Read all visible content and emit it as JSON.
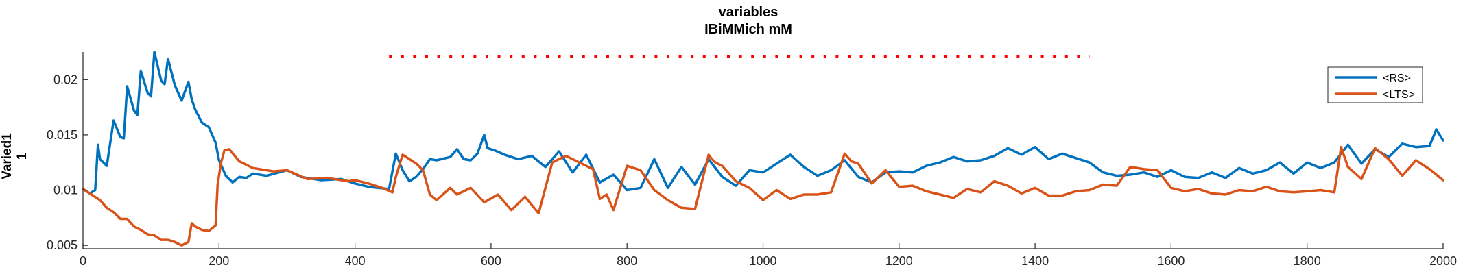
{
  "chart_data": {
    "type": "line",
    "title": "variables",
    "subtitle": "IBiMMich mM",
    "ylabel_lines": [
      "Varied1",
      "1"
    ],
    "xlim": [
      0,
      2000
    ],
    "ylim": [
      0.0047,
      0.0225
    ],
    "xticks": [
      0,
      200,
      400,
      600,
      800,
      1000,
      1200,
      1400,
      1600,
      1800,
      2000
    ],
    "xtick_labels": [
      "0",
      "200",
      "400",
      "600",
      "800",
      "1000",
      "1200",
      "1400",
      "1600",
      "1800",
      "2000"
    ],
    "yticks": [
      0.005,
      0.01,
      0.015,
      0.02
    ],
    "ytick_labels": [
      "0.005",
      "0.01",
      "0.015",
      "0.02"
    ],
    "grid": false,
    "legend_position": "top-right",
    "stimulus_marker": {
      "x_start": 450,
      "x_end": 1480,
      "y": 0.0221,
      "color": "#ff0000",
      "style": "dotted"
    },
    "series": [
      {
        "name": "<RS>",
        "color": "#0072bd",
        "x": [
          0,
          10,
          18,
          22,
          25,
          35,
          45,
          55,
          60,
          65,
          75,
          80,
          85,
          95,
          100,
          105,
          115,
          120,
          125,
          135,
          140,
          145,
          155,
          160,
          165,
          175,
          185,
          195,
          200,
          210,
          220,
          230,
          240,
          250,
          270,
          300,
          320,
          350,
          380,
          400,
          420,
          450,
          460,
          470,
          480,
          490,
          500,
          510,
          520,
          540,
          550,
          560,
          570,
          580,
          590,
          595,
          605,
          620,
          640,
          660,
          680,
          700,
          720,
          740,
          760,
          780,
          800,
          820,
          840,
          860,
          880,
          900,
          920,
          940,
          960,
          980,
          1000,
          1020,
          1040,
          1060,
          1080,
          1100,
          1120,
          1140,
          1160,
          1180,
          1200,
          1220,
          1240,
          1260,
          1280,
          1300,
          1320,
          1340,
          1360,
          1380,
          1400,
          1420,
          1440,
          1460,
          1480,
          1500,
          1520,
          1540,
          1560,
          1580,
          1600,
          1620,
          1640,
          1660,
          1680,
          1700,
          1720,
          1740,
          1760,
          1780,
          1800,
          1820,
          1840,
          1860,
          1880,
          1900,
          1920,
          1940,
          1960,
          1980,
          1990,
          2000
        ],
        "y": [
          0.0101,
          0.0097,
          0.01,
          0.0141,
          0.0128,
          0.0122,
          0.0163,
          0.0148,
          0.0147,
          0.0194,
          0.0172,
          0.0168,
          0.0208,
          0.0188,
          0.0185,
          0.0225,
          0.0199,
          0.0196,
          0.0219,
          0.0195,
          0.0188,
          0.0181,
          0.0198,
          0.0182,
          0.0173,
          0.0161,
          0.0157,
          0.0143,
          0.0127,
          0.0113,
          0.0107,
          0.0112,
          0.0111,
          0.0115,
          0.0113,
          0.0118,
          0.0112,
          0.0109,
          0.011,
          0.0106,
          0.0103,
          0.0101,
          0.0133,
          0.0118,
          0.0108,
          0.0112,
          0.0119,
          0.0128,
          0.0127,
          0.013,
          0.0137,
          0.0128,
          0.0127,
          0.0133,
          0.015,
          0.0138,
          0.0136,
          0.0132,
          0.0128,
          0.0131,
          0.0121,
          0.0135,
          0.0116,
          0.0132,
          0.0107,
          0.0114,
          0.01,
          0.0102,
          0.0128,
          0.0102,
          0.0121,
          0.0105,
          0.0128,
          0.0112,
          0.0104,
          0.0118,
          0.0116,
          0.0124,
          0.0132,
          0.0121,
          0.0113,
          0.0118,
          0.0127,
          0.0112,
          0.0107,
          0.0116,
          0.0117,
          0.0116,
          0.0122,
          0.0125,
          0.013,
          0.0126,
          0.0127,
          0.0131,
          0.0138,
          0.0132,
          0.0139,
          0.0128,
          0.0133,
          0.0129,
          0.0125,
          0.0116,
          0.0113,
          0.0114,
          0.0116,
          0.0112,
          0.0118,
          0.0112,
          0.0111,
          0.0116,
          0.0111,
          0.012,
          0.0115,
          0.0118,
          0.0125,
          0.0115,
          0.0125,
          0.012,
          0.0125,
          0.0141,
          0.0124,
          0.0137,
          0.013,
          0.0142,
          0.0139,
          0.014,
          0.0155,
          0.0145
        ]
      },
      {
        "name": "<LTS>",
        "color": "#d95319",
        "x": [
          0,
          15,
          25,
          35,
          45,
          55,
          65,
          75,
          85,
          95,
          105,
          115,
          125,
          135,
          145,
          155,
          160,
          165,
          175,
          185,
          195,
          198,
          203,
          208,
          215,
          230,
          250,
          280,
          300,
          330,
          360,
          390,
          400,
          420,
          440,
          455,
          460,
          470,
          490,
          500,
          510,
          520,
          540,
          550,
          570,
          590,
          610,
          630,
          650,
          670,
          690,
          710,
          730,
          750,
          760,
          770,
          780,
          800,
          820,
          840,
          860,
          880,
          900,
          920,
          925,
          930,
          940,
          960,
          980,
          1000,
          1020,
          1040,
          1060,
          1080,
          1100,
          1120,
          1130,
          1140,
          1160,
          1180,
          1200,
          1220,
          1240,
          1260,
          1280,
          1300,
          1320,
          1340,
          1360,
          1380,
          1400,
          1420,
          1440,
          1460,
          1480,
          1500,
          1520,
          1540,
          1560,
          1580,
          1600,
          1620,
          1640,
          1660,
          1680,
          1700,
          1720,
          1740,
          1760,
          1780,
          1800,
          1820,
          1840,
          1850,
          1860,
          1880,
          1900,
          1920,
          1940,
          1960,
          1980,
          1990,
          2000
        ],
        "y": [
          0.0101,
          0.0095,
          0.0091,
          0.0084,
          0.008,
          0.0074,
          0.0074,
          0.0067,
          0.0064,
          0.006,
          0.0059,
          0.0055,
          0.0055,
          0.0053,
          0.005,
          0.0053,
          0.007,
          0.0067,
          0.0064,
          0.0063,
          0.0068,
          0.0105,
          0.0125,
          0.0136,
          0.0137,
          0.0126,
          0.012,
          0.0117,
          0.0118,
          0.011,
          0.0111,
          0.0108,
          0.0109,
          0.0106,
          0.0102,
          0.0098,
          0.0112,
          0.0132,
          0.0124,
          0.0118,
          0.0096,
          0.0091,
          0.0102,
          0.0096,
          0.0102,
          0.0089,
          0.0096,
          0.0082,
          0.0094,
          0.0079,
          0.0125,
          0.0131,
          0.0125,
          0.0119,
          0.0092,
          0.0096,
          0.0082,
          0.0122,
          0.0118,
          0.01,
          0.0091,
          0.0084,
          0.0083,
          0.0132,
          0.0128,
          0.0125,
          0.0122,
          0.0108,
          0.0102,
          0.0091,
          0.01,
          0.0092,
          0.0096,
          0.0096,
          0.0098,
          0.0133,
          0.0126,
          0.0124,
          0.0106,
          0.0118,
          0.0103,
          0.0104,
          0.0099,
          0.0096,
          0.0093,
          0.0101,
          0.0098,
          0.0108,
          0.0104,
          0.0097,
          0.0102,
          0.0095,
          0.0095,
          0.0099,
          0.01,
          0.0105,
          0.0104,
          0.0121,
          0.0119,
          0.0118,
          0.0102,
          0.0099,
          0.0101,
          0.0097,
          0.0096,
          0.01,
          0.0099,
          0.0103,
          0.0099,
          0.0098,
          0.0099,
          0.01,
          0.0098,
          0.0139,
          0.0121,
          0.011,
          0.0138,
          0.0128,
          0.0113,
          0.0127,
          0.0119,
          0.0114,
          0.0109
        ]
      }
    ]
  }
}
